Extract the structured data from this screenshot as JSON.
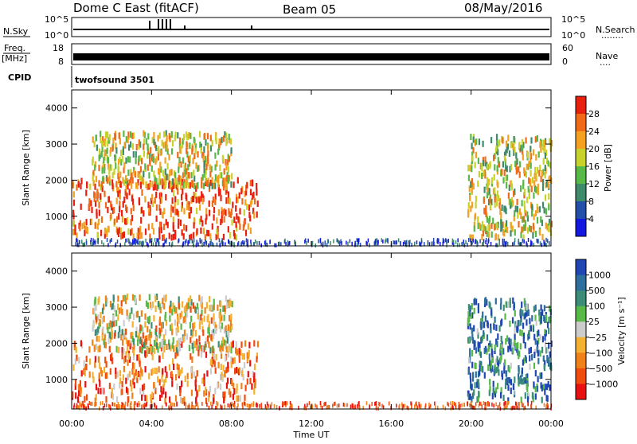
{
  "header": {
    "station": "Dome C East (fitACF)",
    "beam": "Beam 05",
    "date": "08/May/2016"
  },
  "strips": {
    "nsky_label": "N.Sky",
    "nsky_ticks": [
      "10^5",
      "10^0"
    ],
    "nsearch_label": "N.Search",
    "nsearch_ticks": [
      "10^5",
      "10^0"
    ],
    "nsearch_dots": "........",
    "freq_label": "Freq.",
    "freq_unit": "[MHz]",
    "freq_ticks": [
      "18",
      "8"
    ],
    "nave_label": "Nave",
    "nave_ticks": [
      "60",
      "0"
    ],
    "nave_dots": "....",
    "cpid_label": "CPID",
    "cpid_text": "twofsound 3501"
  },
  "chart_data": [
    {
      "type": "heatmap",
      "name": "power",
      "ylabel": "Slant Range [km]",
      "yticks": [
        "4000",
        "3000",
        "2000",
        "1000"
      ],
      "ylim": [
        180,
        4500
      ],
      "xlim_hours": [
        0,
        24
      ],
      "xtick_labels": [
        "00:00",
        "04:00",
        "08:00",
        "12:00",
        "16:00",
        "20:00",
        "00:00"
      ],
      "colorbar_label": "Power [dB]",
      "colorbar_ticks": [
        "28",
        "24",
        "20",
        "16",
        "12",
        "8",
        "4"
      ],
      "colors": [
        "#e82010",
        "#f06a18",
        "#f4a020",
        "#c8d22c",
        "#58b848",
        "#3e8a6a",
        "#244fa8",
        "#1218e0"
      ],
      "regions": [
        {
          "t": [
            0.0,
            9.3
          ],
          "r": [
            400,
            2000
          ],
          "level": 0.15
        },
        {
          "t": [
            1.0,
            8.0
          ],
          "r": [
            1800,
            3300
          ],
          "level": 0.4
        },
        {
          "t": [
            19.8,
            24.0
          ],
          "r": [
            400,
            3200
          ],
          "level": 0.45
        }
      ]
    },
    {
      "type": "heatmap",
      "name": "velocity",
      "ylabel": "Slant Range [km]",
      "yticks": [
        "4000",
        "3000",
        "2000",
        "1000"
      ],
      "ylim": [
        180,
        4500
      ],
      "xlim_hours": [
        0,
        24
      ],
      "xlabel": "Time UT",
      "xtick_labels": [
        "00:00",
        "04:00",
        "08:00",
        "12:00",
        "16:00",
        "20:00",
        "00:00"
      ],
      "colorbar_label": "Velocity [m s⁻¹]",
      "colorbar_ticks": [
        "1000",
        "500",
        "100",
        "25",
        "−25",
        "−100",
        "−500",
        "−1000"
      ],
      "colors": [
        "#2046b4",
        "#2e6e9c",
        "#3c8c78",
        "#58b848",
        "#cccccc",
        "#f4b030",
        "#f08018",
        "#f04c10",
        "#e81010"
      ],
      "regions": [
        {
          "t": [
            0.0,
            9.3
          ],
          "r": [
            400,
            2000
          ],
          "level": 0.75
        },
        {
          "t": [
            1.0,
            8.0
          ],
          "r": [
            1800,
            3300
          ],
          "level": 0.55
        },
        {
          "t": [
            19.8,
            24.0
          ],
          "r": [
            400,
            3200
          ],
          "level": 0.2
        }
      ]
    }
  ]
}
